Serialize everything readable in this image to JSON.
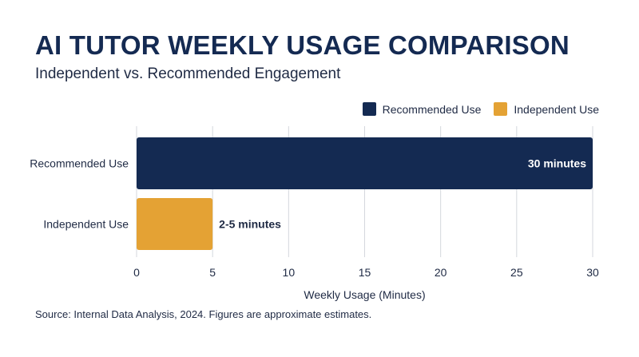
{
  "chart_data": {
    "type": "bar",
    "orientation": "horizontal",
    "title": "AI TUTOR WEEKLY USAGE COMPARISON",
    "subtitle": "Independent vs. Recommended Engagement",
    "categories": [
      "Recommended Use",
      "Independent Use"
    ],
    "values": [
      30,
      5
    ],
    "data_labels": [
      "30 minutes",
      "2-5 minutes"
    ],
    "colors": [
      "#142a52",
      "#e4a234"
    ],
    "xlabel": "Weekly Usage (Minutes)",
    "ylabel": "",
    "xlim": [
      0,
      30
    ],
    "xticks": [
      0,
      5,
      10,
      15,
      20,
      25,
      30
    ],
    "grid": true,
    "legend": {
      "position": "top-right",
      "entries": [
        {
          "label": "Recommended Use",
          "color": "#142a52"
        },
        {
          "label": "Independent Use",
          "color": "#e4a234"
        }
      ]
    }
  },
  "footer": {
    "source": "Source: Internal Data Analysis, 2024. Figures are approximate estimates."
  }
}
